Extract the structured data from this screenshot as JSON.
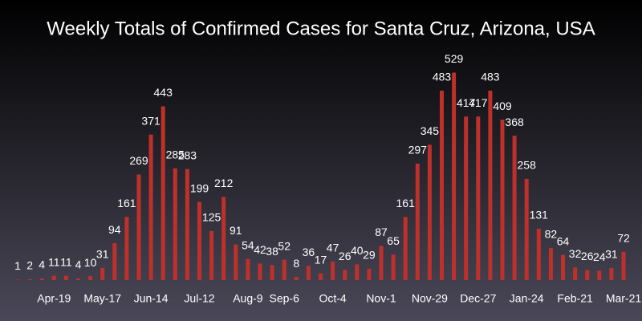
{
  "chart_data": {
    "type": "bar",
    "title": "Weekly Totals of Confirmed Cases for Santa Cruz, Arizona, USA",
    "categories": [
      null,
      null,
      null,
      "Apr-19",
      null,
      null,
      null,
      "May-17",
      null,
      null,
      null,
      "Jun-14",
      null,
      null,
      null,
      "Jul-12",
      null,
      null,
      null,
      "Aug-9",
      null,
      null,
      "Sep-6",
      null,
      null,
      null,
      "Oct-4",
      null,
      null,
      null,
      "Nov-1",
      null,
      null,
      null,
      "Nov-29",
      null,
      null,
      null,
      "Dec-27",
      null,
      null,
      null,
      "Jan-24",
      null,
      null,
      null,
      "Feb-21",
      null,
      null,
      null,
      "Mar-21"
    ],
    "values": [
      1,
      2,
      4,
      11,
      11,
      4,
      10,
      31,
      94,
      161,
      269,
      371,
      443,
      285,
      283,
      199,
      125,
      212,
      91,
      54,
      42,
      38,
      52,
      8,
      36,
      17,
      47,
      26,
      40,
      29,
      87,
      65,
      161,
      297,
      345,
      483,
      529,
      417,
      417,
      483,
      409,
      368,
      258,
      131,
      82,
      64,
      32,
      26,
      24,
      31,
      72
    ],
    "color": "#c0302a",
    "ylim": [
      0,
      530
    ]
  }
}
